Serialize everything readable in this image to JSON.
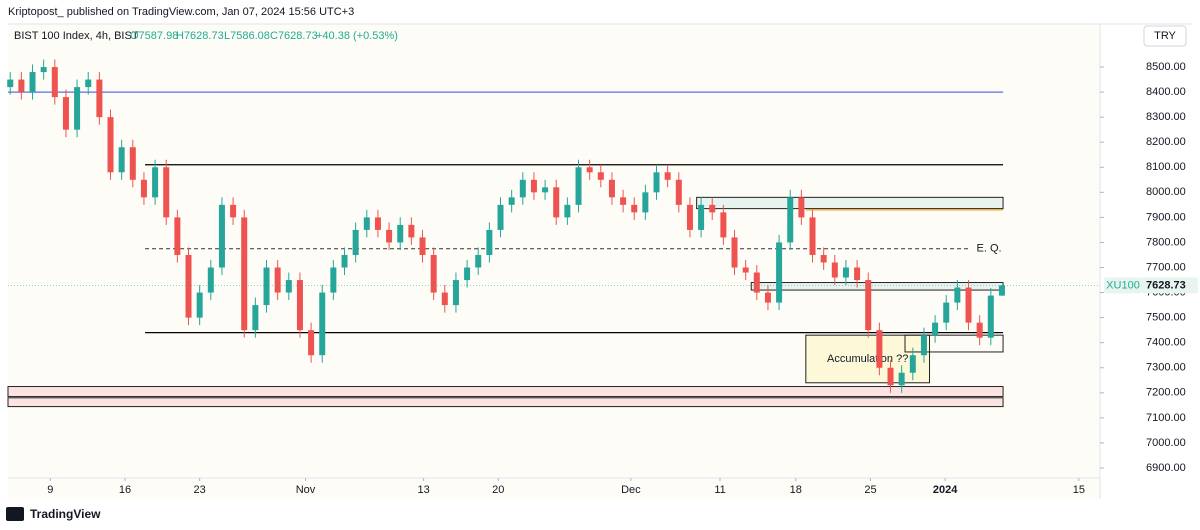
{
  "chart_data": {
    "type": "candlestick",
    "header": "Kriptopost_ published on TradingView.com, Jan 07, 2024 15:56 UTC+3",
    "legend": {
      "name": "BIST 100 Index, 4h, BIST",
      "open": "O7587.98",
      "high": "H7628.73",
      "low": "L7586.08",
      "close": "C7628.73",
      "change": "+40.38 (+0.53%)"
    },
    "currency": "TRY",
    "symbol": "XU100",
    "last_price": 7628.73,
    "footer": "TradingView",
    "up_color": "#26a69a",
    "down_color": "#ef5350",
    "open": [
      8420,
      8450,
      8400,
      8480,
      8500,
      8380,
      8250,
      8420,
      8450,
      8300,
      8080,
      8180,
      8050,
      7980,
      8100,
      7900,
      7750,
      7500,
      7600,
      7700,
      7950,
      7900,
      7450,
      7550,
      7700,
      7600,
      7650,
      7450,
      7350,
      7600,
      7700,
      7750,
      7850,
      7900,
      7850,
      7800,
      7870,
      7820,
      7750,
      7600,
      7550,
      7650,
      7700,
      7750,
      7850,
      7950,
      7980,
      8050,
      8000,
      8020,
      7900,
      7950,
      8100,
      8080,
      8050,
      7980,
      7950,
      7920,
      8000,
      8080,
      8050,
      7950,
      7850,
      7950,
      7920,
      7820,
      7700,
      7680,
      7600,
      7560,
      7800,
      7980,
      7900,
      7750,
      7720,
      7660,
      7700,
      7650,
      7450,
      7300,
      7230,
      7280,
      7350,
      7430,
      7480,
      7560,
      7620,
      7480,
      7420,
      7587.98
    ],
    "high": [
      8480,
      8480,
      8510,
      8530,
      8530,
      8410,
      8450,
      8480,
      8480,
      8330,
      8210,
      8210,
      8080,
      8130,
      8130,
      7930,
      7780,
      7630,
      7730,
      7980,
      7980,
      7930,
      7580,
      7730,
      7730,
      7680,
      7680,
      7480,
      7630,
      7730,
      7780,
      7880,
      7930,
      7930,
      7880,
      7900,
      7900,
      7850,
      7780,
      7630,
      7680,
      7730,
      7780,
      7880,
      7980,
      8010,
      8080,
      8080,
      8050,
      8050,
      7980,
      8130,
      8130,
      8110,
      8080,
      8010,
      7980,
      8030,
      8110,
      8110,
      8080,
      7980,
      7980,
      7980,
      7950,
      7850,
      7730,
      7710,
      7630,
      7830,
      8010,
      8010,
      7930,
      7780,
      7750,
      7730,
      7730,
      7680,
      7480,
      7330,
      7310,
      7380,
      7460,
      7510,
      7590,
      7650,
      7650,
      7510,
      7618,
      7628.73
    ],
    "low": [
      8390,
      8370,
      8370,
      8450,
      8350,
      8220,
      8220,
      8390,
      8270,
      8050,
      8050,
      8020,
      7950,
      7950,
      7870,
      7720,
      7470,
      7470,
      7570,
      7670,
      7870,
      7420,
      7420,
      7520,
      7570,
      7570,
      7420,
      7320,
      7320,
      7570,
      7670,
      7720,
      7820,
      7820,
      7770,
      7770,
      7790,
      7720,
      7570,
      7520,
      7520,
      7620,
      7670,
      7720,
      7820,
      7920,
      7950,
      7970,
      7970,
      7870,
      7870,
      7920,
      8050,
      8020,
      7950,
      7920,
      7890,
      7890,
      7970,
      8020,
      7920,
      7820,
      7820,
      7890,
      7790,
      7670,
      7650,
      7570,
      7530,
      7530,
      7770,
      7870,
      7720,
      7690,
      7630,
      7630,
      7620,
      7420,
      7270,
      7200,
      7200,
      7250,
      7320,
      7400,
      7450,
      7530,
      7450,
      7390,
      7390,
      7586.08
    ],
    "close": [
      8450,
      8400,
      8480,
      8500,
      8380,
      8250,
      8420,
      8450,
      8300,
      8080,
      8180,
      8050,
      7980,
      8100,
      7900,
      7750,
      7500,
      7600,
      7700,
      7950,
      7900,
      7450,
      7550,
      7700,
      7600,
      7650,
      7450,
      7350,
      7600,
      7700,
      7750,
      7850,
      7900,
      7850,
      7800,
      7870,
      7820,
      7750,
      7600,
      7550,
      7650,
      7700,
      7750,
      7850,
      7950,
      7980,
      8050,
      8000,
      8020,
      7900,
      7950,
      8100,
      8080,
      8050,
      7980,
      7950,
      7920,
      8000,
      8080,
      8050,
      7950,
      7850,
      7950,
      7920,
      7820,
      7700,
      7680,
      7600,
      7560,
      7800,
      7980,
      7900,
      7750,
      7720,
      7660,
      7700,
      7650,
      7450,
      7300,
      7230,
      7280,
      7350,
      7430,
      7480,
      7560,
      7620,
      7480,
      7420,
      7588,
      7628.73
    ],
    "xlim": [
      -0.2,
      97.8
    ],
    "xticks": [
      {
        "value": 3.6,
        "label": "9"
      },
      {
        "value": 10.3,
        "label": "16"
      },
      {
        "value": 17.0,
        "label": "23"
      },
      {
        "value": 26.5,
        "label": "Nov"
      },
      {
        "value": 37.1,
        "label": "13"
      },
      {
        "value": 43.8,
        "label": "20"
      },
      {
        "value": 55.7,
        "label": "Dec"
      },
      {
        "value": 63.7,
        "label": "11"
      },
      {
        "value": 70.5,
        "label": "18"
      },
      {
        "value": 77.2,
        "label": "25"
      },
      {
        "value": 83.9,
        "label": "2024"
      },
      {
        "value": 95.9,
        "label": "15"
      }
    ],
    "ylim": [
      6860,
      8568
    ],
    "yticks": [
      {
        "value": 6900,
        "label": "6900.00"
      },
      {
        "value": 7000,
        "label": "7000.00"
      },
      {
        "value": 7100,
        "label": "7100.00"
      },
      {
        "value": 7200,
        "label": "7200.00"
      },
      {
        "value": 7300,
        "label": "7300.00"
      },
      {
        "value": 7400,
        "label": "7400.00"
      },
      {
        "value": 7500,
        "label": "7500.00"
      },
      {
        "value": 7600,
        "label": "7600.00"
      },
      {
        "value": 7700,
        "label": "7700.00"
      },
      {
        "value": 7800,
        "label": "7800.00"
      },
      {
        "value": 7900,
        "label": "7900.00"
      },
      {
        "value": 8000,
        "label": "8000.00"
      },
      {
        "value": 8100,
        "label": "8100.00"
      },
      {
        "value": 8200,
        "label": "8200.00"
      },
      {
        "value": 8300,
        "label": "8300.00"
      },
      {
        "value": 8400,
        "label": "8400.00"
      },
      {
        "value": 8500,
        "label": "8500.00"
      }
    ],
    "grid": false,
    "hlines": [
      {
        "value": 8400,
        "from": -0.2,
        "to": 89.1,
        "color": "#5b6ee1",
        "dashed": false
      },
      {
        "value": 8110,
        "from": 12.1,
        "to": 89.1,
        "color": "#000000",
        "dashed": false
      },
      {
        "value": 7440,
        "from": 12.1,
        "to": 89.1,
        "color": "#000000",
        "dashed": false
      },
      {
        "value": 7775,
        "from": 12.1,
        "to": 86.0,
        "color": "#333333",
        "dashed": true,
        "label": "E. Q."
      },
      {
        "value": 7930,
        "from": 71.4,
        "to": 89.1,
        "color": "#f5a623",
        "dashed": false
      }
    ],
    "zones": [
      {
        "from": -0.2,
        "to": 89.1,
        "top": 7225,
        "bottom": 7185,
        "color": "#fde2e2"
      },
      {
        "from": -0.2,
        "to": 89.1,
        "top": 7180,
        "bottom": 7145,
        "color": "#fde2e2"
      },
      {
        "from": 66.5,
        "to": 89.1,
        "top": 7640,
        "bottom": 7610,
        "color": "#e8f2ef"
      },
      {
        "from": 61.6,
        "to": 89.1,
        "top": 7980,
        "bottom": 7935,
        "color": "#e8f2ef"
      },
      {
        "from": 71.4,
        "to": 82.5,
        "top": 7430,
        "bottom": 7240,
        "color": "#fdf8d8",
        "label": "Accumulation ??"
      },
      {
        "from": 80.3,
        "to": 89.1,
        "top": 7430,
        "bottom": 7363,
        "color": "none"
      }
    ]
  }
}
